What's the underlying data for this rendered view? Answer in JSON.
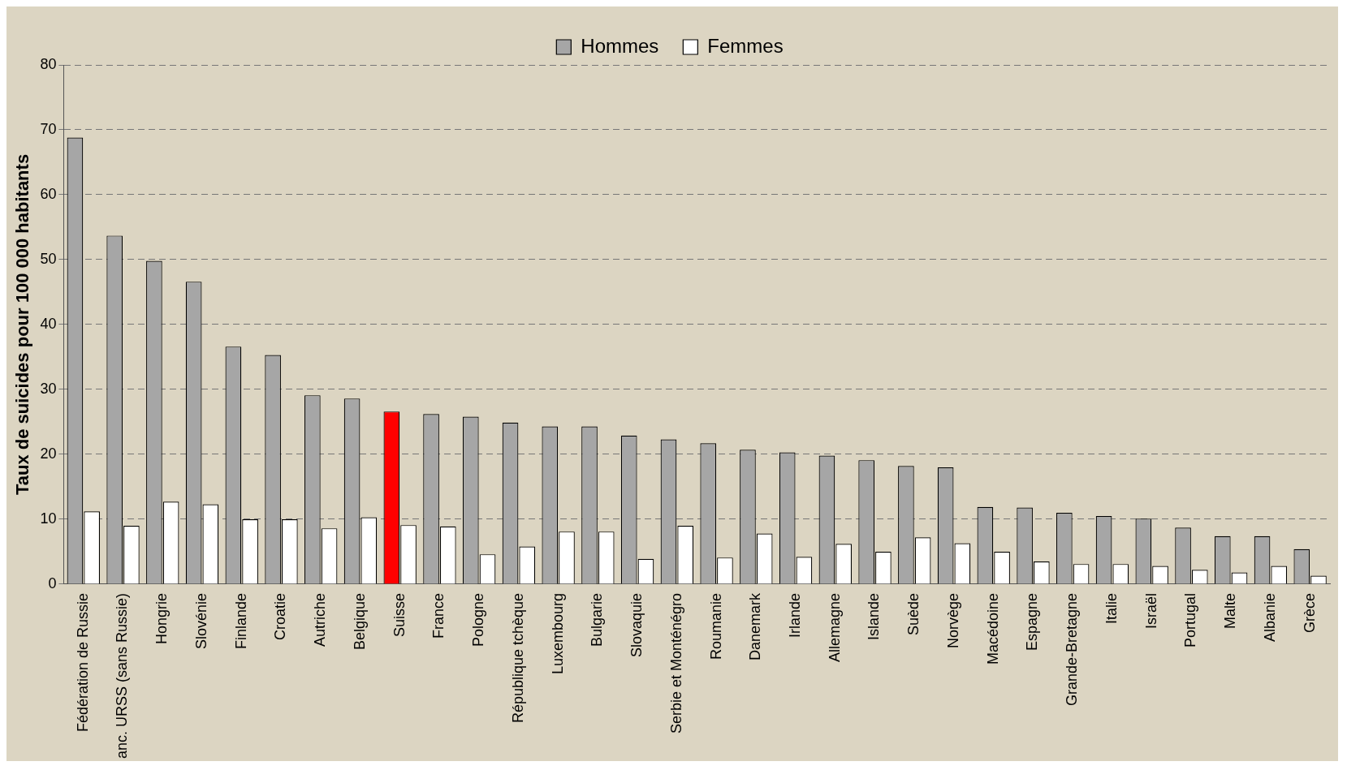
{
  "chart_data": {
    "type": "bar",
    "ylabel": "Taux de suicides pour 100 000 habitants",
    "categories": [
      "Fédération de Russie",
      "anc. URSS (sans Russie)",
      "Hongrie",
      "Slovénie",
      "Finlande",
      "Croatie",
      "Autriche",
      "Belgique",
      "Suisse",
      "France",
      "Pologne",
      "République tchèque",
      "Luxembourg",
      "Bulgarie",
      "Slovaquie",
      "Serbie et Monténégro",
      "Roumanie",
      "Danemark",
      "Irlande",
      "Allemagne",
      "Islande",
      "Suède",
      "Norvège",
      "Macédoine",
      "Espagne",
      "Grande-Bretagne",
      "Italie",
      "Israël",
      "Portugal",
      "Malte",
      "Albanie",
      "Grèce"
    ],
    "series": [
      {
        "name": "Hommes",
        "color": "#a6a6a6",
        "colors": [
          "#a6a6a6",
          "#a6a6a6",
          "#a6a6a6",
          "#a6a6a6",
          "#a6a6a6",
          "#a6a6a6",
          "#a6a6a6",
          "#a6a6a6",
          "#ff0000",
          "#a6a6a6",
          "#a6a6a6",
          "#a6a6a6",
          "#a6a6a6",
          "#a6a6a6",
          "#a6a6a6",
          "#a6a6a6",
          "#a6a6a6",
          "#a6a6a6",
          "#a6a6a6",
          "#a6a6a6",
          "#a6a6a6",
          "#a6a6a6",
          "#a6a6a6",
          "#a6a6a6",
          "#a6a6a6",
          "#a6a6a6",
          "#a6a6a6",
          "#a6a6a6",
          "#a6a6a6",
          "#a6a6a6",
          "#a6a6a6",
          "#a6a6a6"
        ],
        "values": [
          68.8,
          53.7,
          49.8,
          46.6,
          36.6,
          35.3,
          29.1,
          28.6,
          26.6,
          26.2,
          25.8,
          24.9,
          24.3,
          24.3,
          22.9,
          22.3,
          21.7,
          20.7,
          20.3,
          19.8,
          19.1,
          18.2,
          18.0,
          11.9,
          11.8,
          11.0,
          10.5,
          10.1,
          8.7,
          7.4,
          7.4,
          5.4
        ]
      },
      {
        "name": "Femmes",
        "color": "#ffffff",
        "values": [
          11.2,
          9.0,
          12.7,
          12.3,
          10.0,
          10.0,
          8.6,
          10.3,
          9.1,
          8.9,
          4.6,
          5.8,
          8.1,
          8.1,
          3.9,
          9.0,
          4.1,
          7.8,
          4.2,
          6.2,
          5.0,
          7.2,
          6.3,
          5.0,
          3.5,
          3.1,
          3.1,
          2.8,
          2.2,
          1.8,
          2.8,
          1.3
        ]
      }
    ],
    "ylim": [
      0,
      80
    ],
    "yticks": [
      0,
      10,
      20,
      30,
      40,
      50,
      60,
      70,
      80
    ],
    "grid": "y",
    "legend": "top"
  }
}
